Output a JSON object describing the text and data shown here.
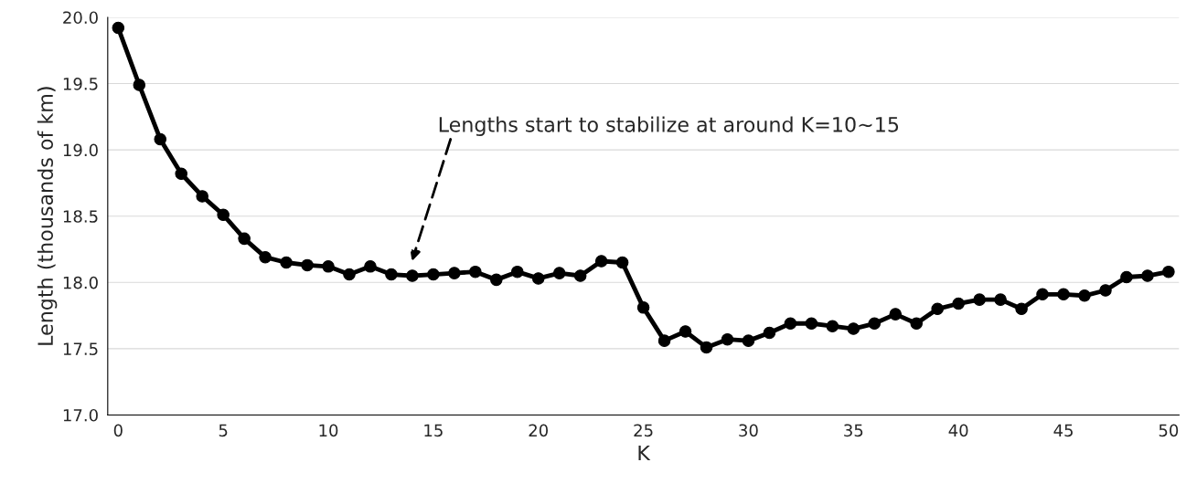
{
  "chart_data": {
    "type": "line",
    "xlabel": "K",
    "ylabel": "Length (thousands of km)",
    "x": [
      0,
      1,
      2,
      3,
      4,
      5,
      6,
      7,
      8,
      9,
      10,
      11,
      12,
      13,
      14,
      15,
      16,
      17,
      18,
      19,
      20,
      21,
      22,
      23,
      24,
      25,
      26,
      27,
      28,
      29,
      30,
      31,
      32,
      33,
      34,
      35,
      36,
      37,
      38,
      39,
      40,
      41,
      42,
      43,
      44,
      45,
      46,
      47,
      48,
      49,
      50
    ],
    "series": [
      {
        "color": "#000000",
        "values": [
          19.92,
          19.49,
          19.08,
          18.82,
          18.65,
          18.51,
          18.33,
          18.19,
          18.15,
          18.13,
          18.12,
          18.06,
          18.12,
          18.06,
          18.05,
          18.06,
          18.07,
          18.08,
          18.02,
          18.08,
          18.03,
          18.07,
          18.05,
          18.16,
          18.15,
          17.81,
          17.56,
          17.63,
          17.51,
          17.57,
          17.56,
          17.62,
          17.69,
          17.69,
          17.67,
          17.65,
          17.69,
          17.76,
          17.69,
          17.8,
          17.84,
          17.87,
          17.87,
          17.8,
          17.91,
          17.91,
          17.9,
          17.94,
          18.04,
          18.05,
          18.08
        ]
      }
    ],
    "annotations": [
      "Lengths start to stabilize at around K=10~15"
    ],
    "xlim": [
      -0.5,
      50.5
    ],
    "xticks": [
      0,
      5,
      10,
      15,
      20,
      25,
      30,
      35,
      40,
      45,
      50
    ],
    "ylim": [
      17.0,
      20.0
    ],
    "yticks": [
      {
        "value": 17.0,
        "label": "17.0"
      },
      {
        "value": 17.5,
        "label": "17.5"
      },
      {
        "value": 18.0,
        "label": "18.0"
      },
      {
        "value": 18.5,
        "label": "18.5"
      },
      {
        "value": 19.0,
        "label": "19.0"
      },
      {
        "value": 19.5,
        "label": "19.5"
      },
      {
        "value": 20.0,
        "label": "20.0"
      }
    ],
    "grid": "y",
    "marker": "circle",
    "line_style": "solid",
    "legend": false
  }
}
